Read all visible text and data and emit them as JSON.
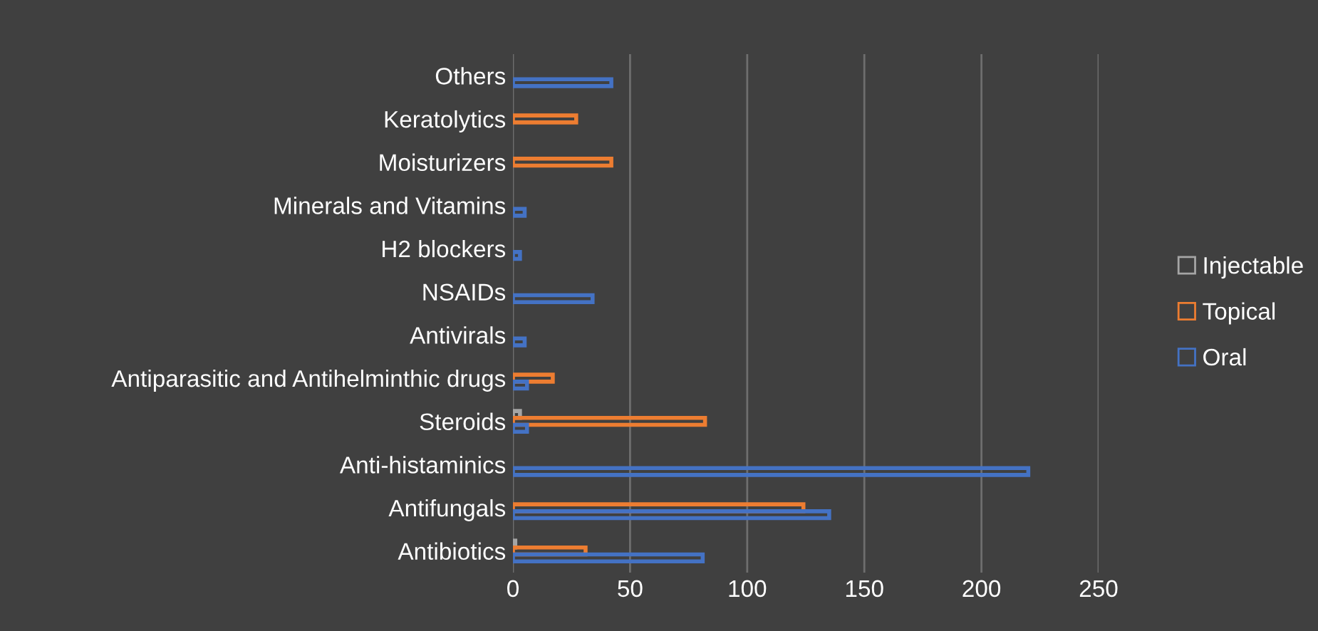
{
  "chart_data": {
    "type": "bar",
    "orientation": "horizontal",
    "categories": [
      "Others",
      "Keratolytics",
      "Moisturizers",
      "Minerals and Vitamins",
      "H2 blockers",
      "NSAIDs",
      "Antivirals",
      "Antiparasitic and Antihelminthic drugs",
      "Steroids",
      "Anti-histaminics",
      "Antifungals",
      "Antibiotics"
    ],
    "series": [
      {
        "name": "Injectable",
        "color": "#a5a5a5",
        "values": [
          null,
          null,
          null,
          null,
          null,
          null,
          null,
          null,
          3,
          null,
          null,
          1
        ]
      },
      {
        "name": "Topical",
        "color": "#ed7d31",
        "values": [
          null,
          27,
          42,
          null,
          null,
          null,
          null,
          17,
          82,
          null,
          124,
          31
        ]
      },
      {
        "name": "Oral",
        "color": "#4472c4",
        "values": [
          42,
          null,
          null,
          5,
          3,
          34,
          5,
          6,
          6,
          220,
          135,
          81
        ]
      }
    ],
    "xlim": [
      0,
      250
    ],
    "xticks": [
      0,
      50,
      100,
      150,
      200,
      250
    ],
    "grid": "x",
    "legend": "right"
  }
}
